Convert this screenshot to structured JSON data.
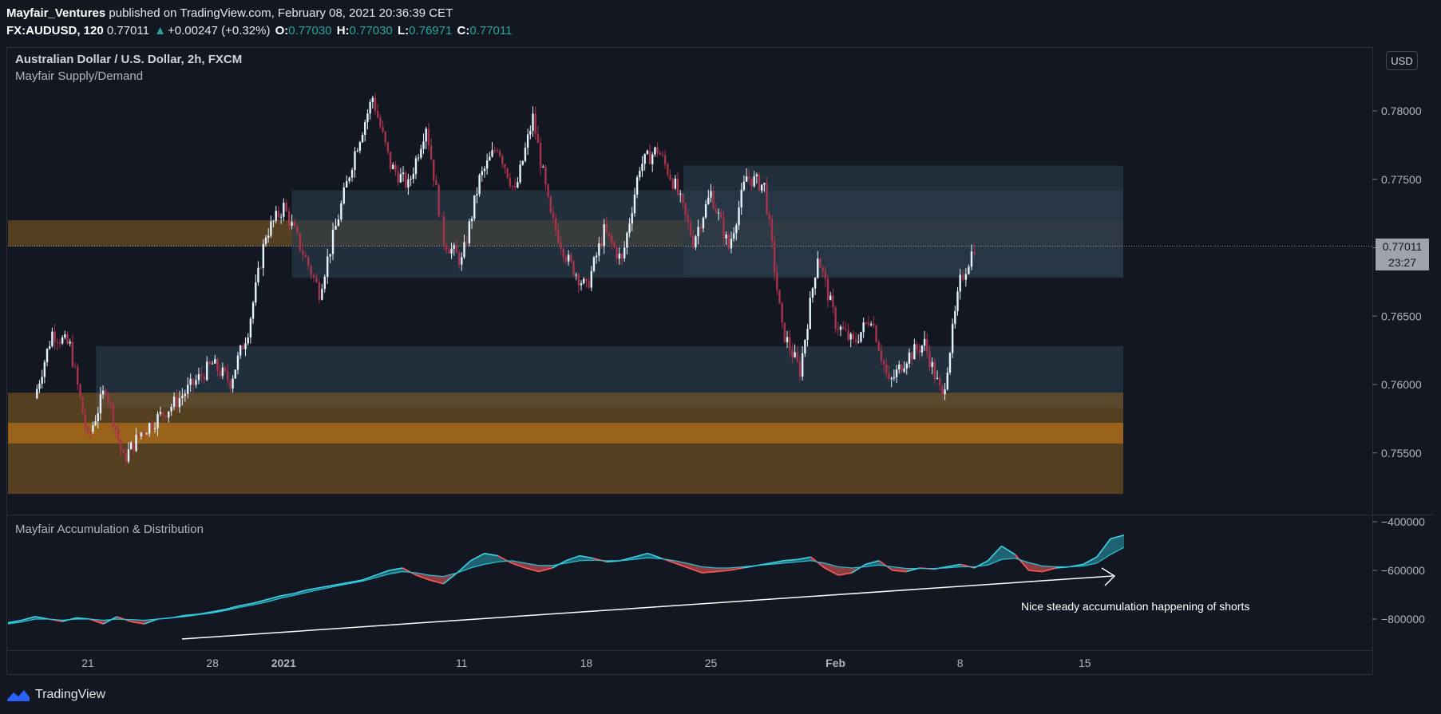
{
  "header": {
    "author": "Mayfair_Ventures",
    "published": " published on TradingView.com, February 08, 2021 20:36:39 CET",
    "symbol": "FX:AUDUSD, 120",
    "last": "0.77011",
    "change": "+0.00247 (+0.32%)",
    "o_label": "O:",
    "o": "0.77030",
    "h_label": "H:",
    "h": "0.77030",
    "l_label": "L:",
    "l": "0.76971",
    "c_label": "C:",
    "c": "0.77011"
  },
  "chart": {
    "symbol_title": "Australian Dollar / U.S. Dollar, 2h, FXCM",
    "indicator1": "Mayfair Supply/Demand",
    "indicator2": "Mayfair Accumulation & Distribution",
    "currency_button": "USD",
    "last_price_label": "0.77011",
    "countdown_label": "23:27",
    "annotation": "Nice steady accumulation happening of shorts"
  },
  "footer": {
    "brand": "TradingView"
  },
  "colors": {
    "background": "#131722",
    "up_candle": "#e3f2fd",
    "down_candle": "#a8334a",
    "supply_zone": "#8a6020",
    "demand_zone": "#2a3a4a",
    "osc_line": "#26c6da",
    "osc_up_fill": "#2aa3b4",
    "osc_down_fill": "#f05f5f"
  },
  "chart_data": [
    {
      "type": "candlestick",
      "title": "Australian Dollar / U.S. Dollar, 2h, FXCM",
      "ylim": [
        0.7535,
        0.7815
      ],
      "y_ticks": [
        "0.78000",
        "0.77500",
        "0.77000",
        "0.76500",
        "0.76000",
        "0.75500"
      ],
      "x_ticks": [
        "21",
        "28",
        "2021",
        "11",
        "18",
        "25",
        "Feb",
        "8",
        "15"
      ],
      "last_price": 0.77011,
      "close_path": [
        [
          "Dec 18",
          0.759
        ],
        [
          "Dec 19",
          0.7638
        ],
        [
          "Dec 20",
          0.7628
        ],
        [
          "Dec 21",
          0.756
        ],
        [
          "Dec 22",
          0.7598
        ],
        [
          "Dec 23",
          0.7545
        ],
        [
          "Dec 24",
          0.7565
        ],
        [
          "Dec 26",
          0.7588
        ],
        [
          "Dec 28",
          0.7615
        ],
        [
          "Dec 29",
          0.7602
        ],
        [
          "Dec 30",
          0.764
        ],
        [
          "Dec 31",
          0.771
        ],
        [
          "Jan 01",
          0.773
        ],
        [
          "Jan 03",
          0.7668
        ],
        [
          "Jan 05",
          0.777
        ],
        [
          "Jan 06",
          0.781
        ],
        [
          "Jan 07",
          0.776
        ],
        [
          "Jan 08",
          0.7745
        ],
        [
          "Jan 09",
          0.779
        ],
        [
          "Jan 10",
          0.7705
        ],
        [
          "Jan 11",
          0.769
        ],
        [
          "Jan 12",
          0.775
        ],
        [
          "Jan 13",
          0.7775
        ],
        [
          "Jan 14",
          0.774
        ],
        [
          "Jan 15",
          0.7795
        ],
        [
          "Jan 16",
          0.7722
        ],
        [
          "Jan 17",
          0.769
        ],
        [
          "Jan 18",
          0.767
        ],
        [
          "Jan 19",
          0.7712
        ],
        [
          "Jan 20",
          0.769
        ],
        [
          "Jan 21",
          0.776
        ],
        [
          "Jan 22",
          0.7772
        ],
        [
          "Jan 23",
          0.7745
        ],
        [
          "Jan 24",
          0.7705
        ],
        [
          "Jan 25",
          0.774
        ],
        [
          "Jan 26",
          0.77
        ],
        [
          "Jan 27",
          0.7752
        ],
        [
          "Jan 28",
          0.7745
        ],
        [
          "Jan 29",
          0.764
        ],
        [
          "Jan 30",
          0.761
        ],
        [
          "Jan 31",
          0.7695
        ],
        [
          "Feb 01",
          0.7645
        ],
        [
          "Feb 02",
          0.763
        ],
        [
          "Feb 03",
          0.765
        ],
        [
          "Feb 04",
          0.76
        ],
        [
          "Feb 05",
          0.762
        ],
        [
          "Feb 06",
          0.763
        ],
        [
          "Feb 07",
          0.759
        ],
        [
          "Feb 08",
          0.7675
        ],
        [
          "Feb 08 20:00",
          0.77011
        ]
      ],
      "zones": [
        {
          "kind": "supply",
          "from": "Dec 17",
          "to": "Feb 08",
          "top": 0.772,
          "bottom": 0.7701
        },
        {
          "kind": "demand",
          "from": "Dec 22",
          "to": "Jan 24",
          "top": 0.7628,
          "bottom": 0.7583
        },
        {
          "kind": "demand",
          "from": "Jan 02",
          "to": "Feb 08",
          "top": 0.7742,
          "bottom": 0.7678
        },
        {
          "kind": "demand",
          "from": "Jan 24",
          "to": "Feb 08",
          "top": 0.776,
          "bottom": 0.7679
        },
        {
          "kind": "supply",
          "from": "Dec 17",
          "to": "Feb 08",
          "top": 0.7594,
          "bottom": 0.752
        }
      ]
    },
    {
      "type": "area",
      "title": "Mayfair Accumulation & Distribution",
      "ylim": [
        -860000,
        -390000
      ],
      "y_ticks": [
        "-400000",
        "-600000",
        "-800000"
      ],
      "series": [
        {
          "values": [
            -815000,
            -805000,
            -790000,
            -800000,
            -810000,
            -795000,
            -800000,
            -820000,
            -790000,
            -810000,
            -820000,
            -800000,
            -795000,
            -785000,
            -780000,
            -770000,
            -760000,
            -745000,
            -735000,
            -720000,
            -705000,
            -695000,
            -680000,
            -670000,
            -660000,
            -650000,
            -640000,
            -620000,
            -600000,
            -590000,
            -620000,
            -640000,
            -655000,
            -610000,
            -560000,
            -530000,
            -540000,
            -570000,
            -590000,
            -605000,
            -590000,
            -560000,
            -540000,
            -550000,
            -565000,
            -560000,
            -545000,
            -530000,
            -550000,
            -570000,
            -590000,
            -610000,
            -605000,
            -600000,
            -590000,
            -580000,
            -570000,
            -560000,
            -555000,
            -545000,
            -590000,
            -620000,
            -610000,
            -575000,
            -560000,
            -600000,
            -605000,
            -590000,
            -595000,
            -585000,
            -575000,
            -590000,
            -560000,
            -500000,
            -535000,
            -600000,
            -605000,
            -590000,
            -585000,
            -575000,
            -545000,
            -470000,
            -455000
          ]
        },
        {
          "values": [
            -820000,
            -812000,
            -800000,
            -800000,
            -805000,
            -800000,
            -800000,
            -805000,
            -800000,
            -802000,
            -805000,
            -800000,
            -795000,
            -790000,
            -782000,
            -775000,
            -765000,
            -752000,
            -742000,
            -730000,
            -715000,
            -703000,
            -690000,
            -678000,
            -666000,
            -655000,
            -645000,
            -630000,
            -615000,
            -605000,
            -610000,
            -620000,
            -625000,
            -610000,
            -590000,
            -575000,
            -565000,
            -560000,
            -570000,
            -580000,
            -580000,
            -570000,
            -560000,
            -558000,
            -560000,
            -560000,
            -555000,
            -548000,
            -552000,
            -560000,
            -572000,
            -585000,
            -590000,
            -590000,
            -585000,
            -580000,
            -575000,
            -570000,
            -565000,
            -560000,
            -570000,
            -585000,
            -590000,
            -585000,
            -578000,
            -585000,
            -592000,
            -592000,
            -592000,
            -590000,
            -585000,
            -585000,
            -578000,
            -555000,
            -550000,
            -568000,
            -582000,
            -585000,
            -585000,
            -582000,
            -570000,
            -535000,
            -505000
          ]
        }
      ]
    }
  ]
}
